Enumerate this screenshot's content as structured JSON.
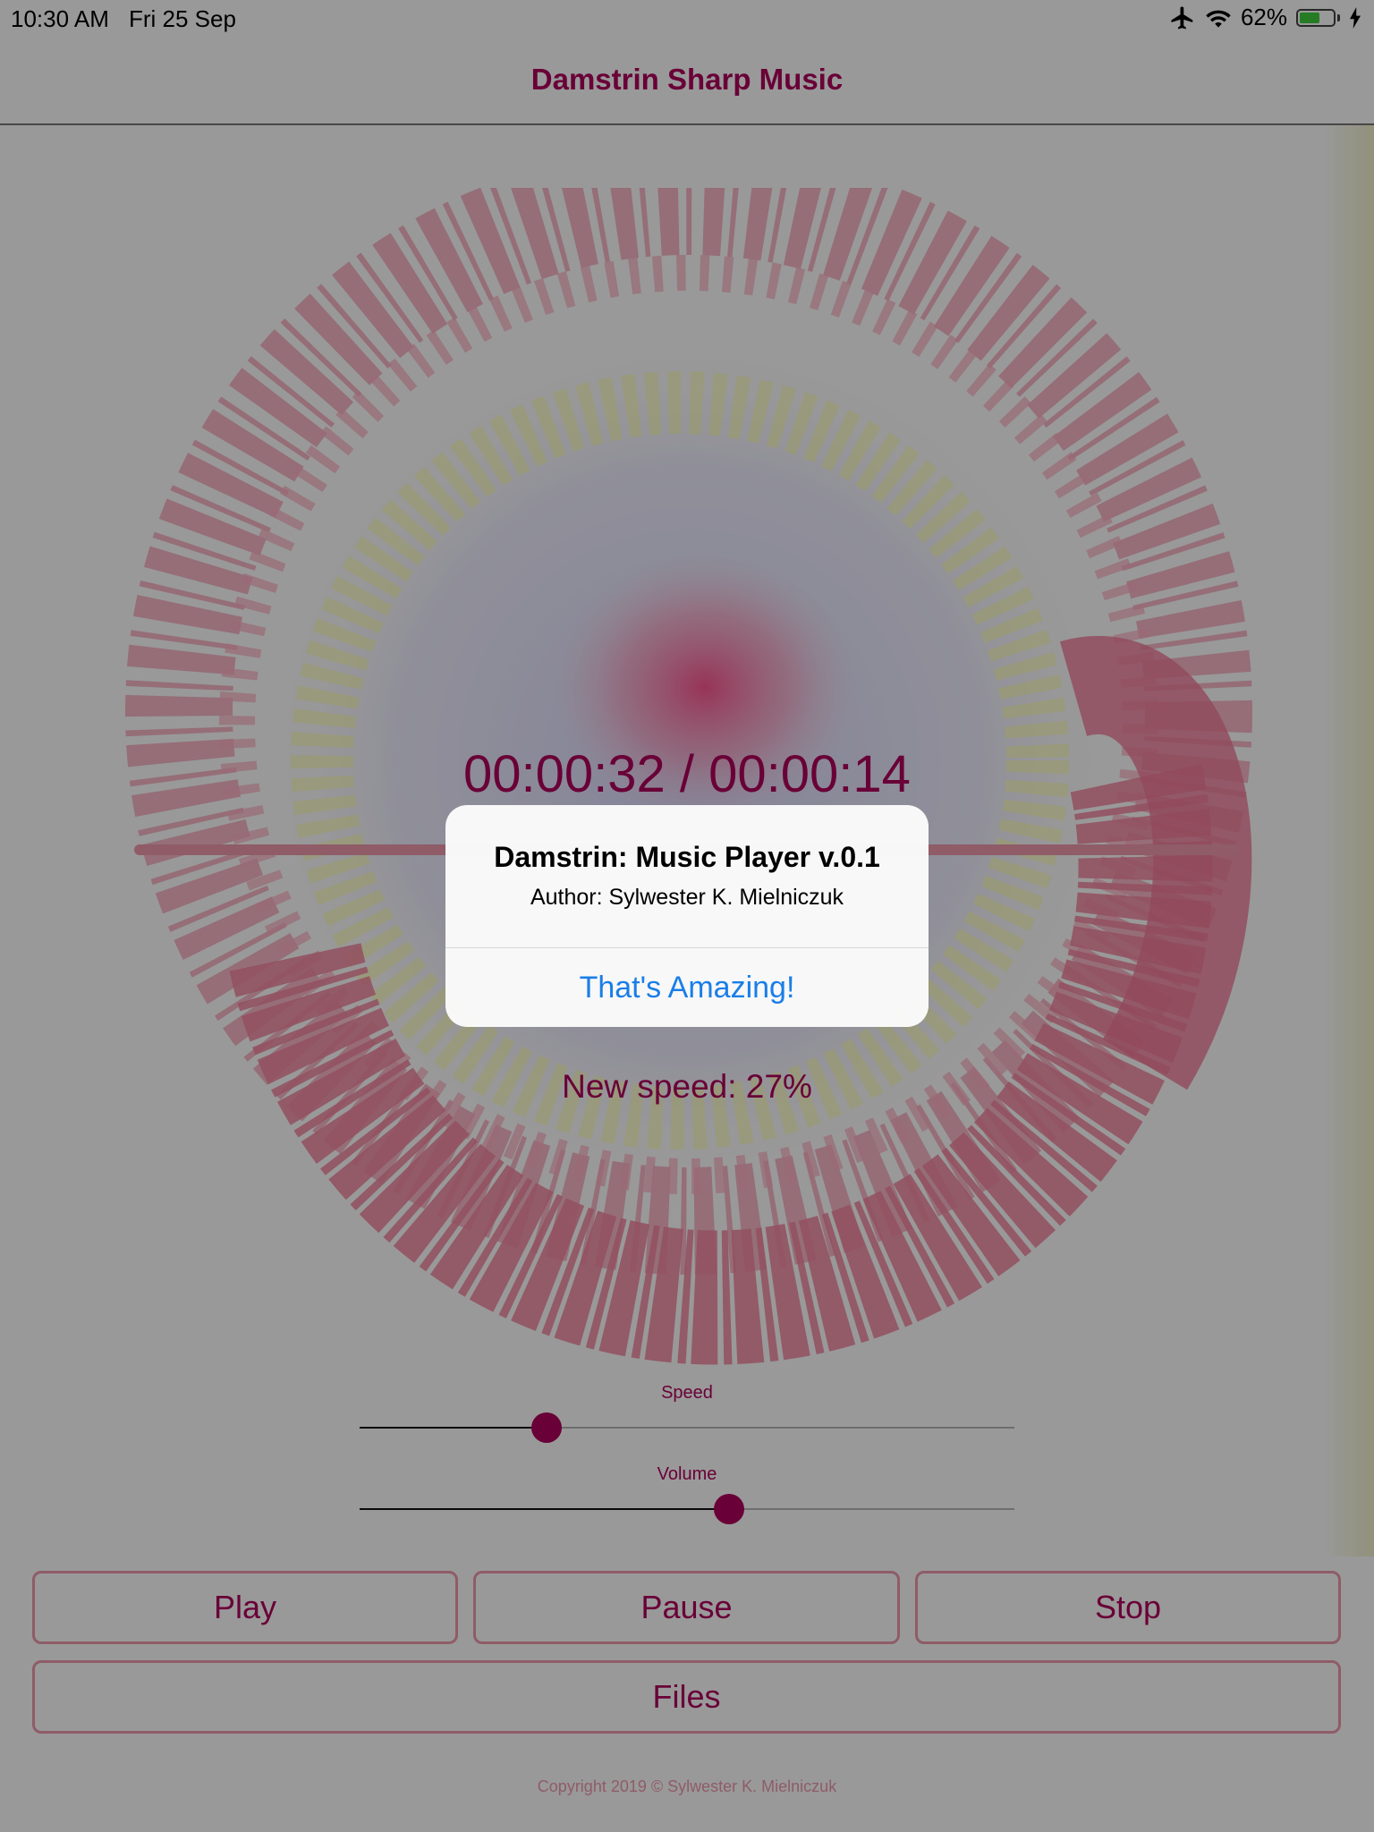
{
  "colors": {
    "accent": "#b0005c",
    "accent_light": "#ee9aae",
    "link_blue": "#1a7ee8",
    "battery_green": "#3ecf3e"
  },
  "status_bar": {
    "time": "10:30 AM",
    "date": "Fri 25 Sep",
    "battery": "62%",
    "battery_level": 0.62
  },
  "nav": {
    "title": "Damstrin Sharp Music"
  },
  "player": {
    "time_display": "00:00:32 / 00:00:14",
    "speed_readout": "New speed: 27%",
    "speed_slider": {
      "label": "Speed",
      "value": 0.285
    },
    "volume_slider": {
      "label": "Volume",
      "value": 0.564
    }
  },
  "buttons": {
    "play": "Play",
    "pause": "Pause",
    "stop": "Stop",
    "files": "Files"
  },
  "footer": {
    "copyright": "Copyright 2019 © Sylwester K. Mielniczuk"
  },
  "alert": {
    "title": "Damstrin: Music Player v.0.1",
    "message": "Author: Sylwester K. Mielniczuk",
    "action": "That's Amazing!"
  },
  "icons": {
    "airplane": "airplane-icon",
    "wifi": "wifi-icon",
    "battery": "battery-icon",
    "charging": "charging-bolt-icon"
  }
}
